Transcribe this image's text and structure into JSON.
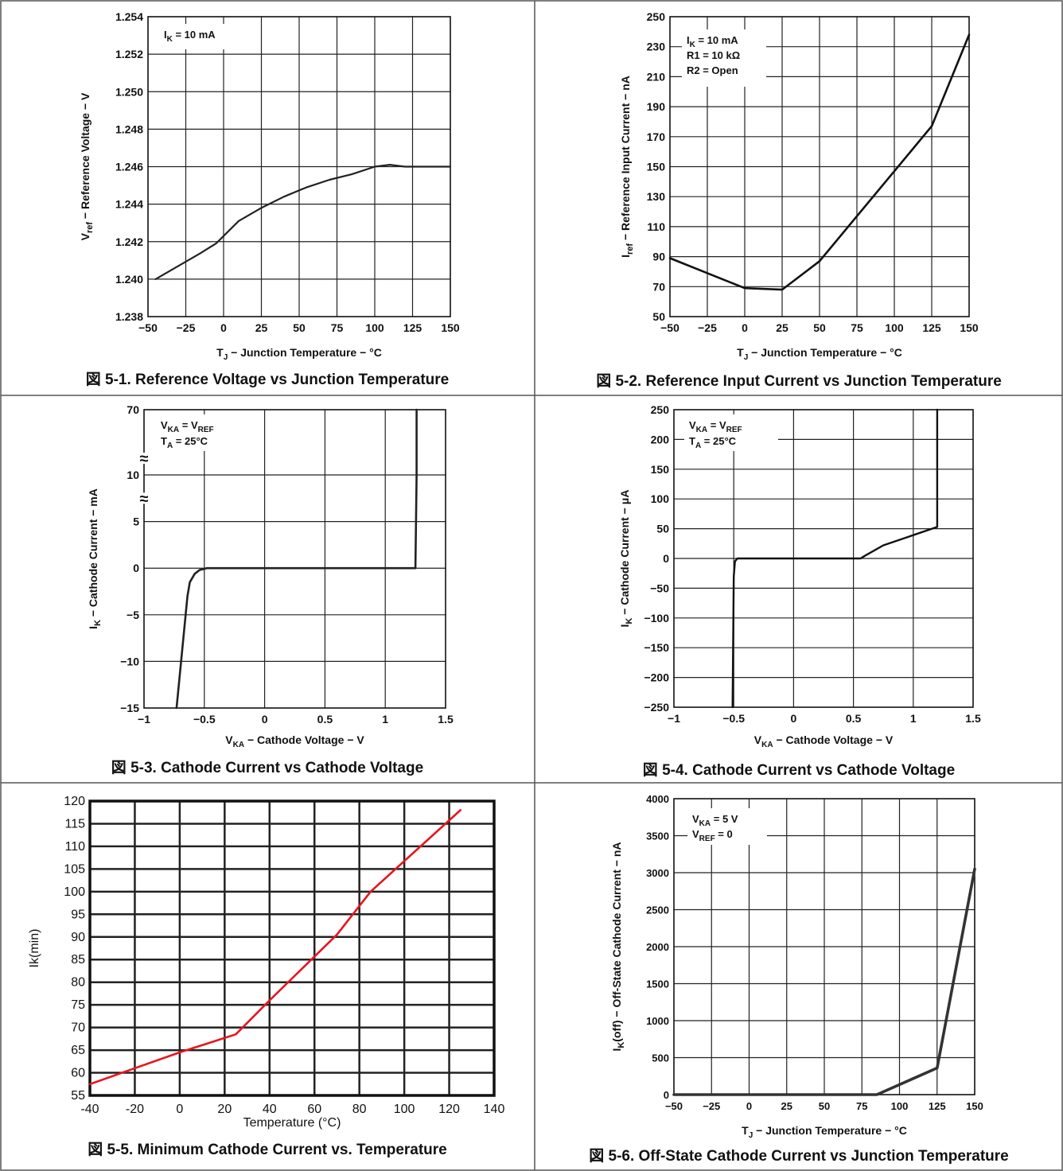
{
  "chart_data": [
    {
      "id": "fig5-1",
      "type": "line",
      "caption": "図 5-1. Reference Voltage vs Junction Temperature",
      "xlabel": "T_J − Junction Temperature − °C",
      "ylabel": "V_ref − Reference Voltage − V",
      "xlim": [
        -50,
        150
      ],
      "ylim": [
        1.238,
        1.254
      ],
      "xticks": [
        -50,
        -25,
        0,
        25,
        50,
        75,
        100,
        125,
        150
      ],
      "xtick_labels": [
        "−50",
        "−25",
        "0",
        "25",
        "50",
        "75",
        "100",
        "125",
        "150"
      ],
      "yticks": [
        1.238,
        1.24,
        1.242,
        1.244,
        1.246,
        1.248,
        1.25,
        1.252,
        1.254
      ],
      "ytick_labels": [
        "1.238",
        "1.240",
        "1.242",
        "1.244",
        "1.246",
        "1.248",
        "1.250",
        "1.252",
        "1.254"
      ],
      "grid": true,
      "annotation": "I_K = 10 mA",
      "series": [
        {
          "color": "#222222",
          "x": [
            -45,
            -30,
            -15,
            -5,
            0,
            10,
            25,
            40,
            55,
            70,
            85,
            100,
            110,
            120,
            125,
            130,
            150
          ],
          "y": [
            1.24,
            1.2407,
            1.2414,
            1.2419,
            1.2423,
            1.2431,
            1.2438,
            1.2444,
            1.2449,
            1.2453,
            1.2456,
            1.246,
            1.2461,
            1.246,
            1.246,
            1.246,
            1.246
          ]
        }
      ]
    },
    {
      "id": "fig5-2",
      "type": "line",
      "caption": "図 5-2. Reference Input Current vs Junction Temperature",
      "xlabel": "T_J − Junction Temperature − °C",
      "ylabel": "I_ref − Reference Input Current − nA",
      "xlim": [
        -50,
        150
      ],
      "ylim": [
        50,
        250
      ],
      "xticks": [
        -50,
        -25,
        0,
        25,
        50,
        75,
        100,
        125,
        150
      ],
      "xtick_labels": [
        "−50",
        "−25",
        "0",
        "25",
        "50",
        "75",
        "100",
        "125",
        "150"
      ],
      "yticks": [
        50,
        70,
        90,
        110,
        130,
        150,
        170,
        190,
        210,
        230,
        250
      ],
      "ytick_labels": [
        "50",
        "70",
        "90",
        "110",
        "130",
        "150",
        "170",
        "190",
        "210",
        "230",
        "250"
      ],
      "grid": true,
      "annotation": [
        "I_K = 10 mA",
        "R1 = 10 kΩ",
        "R2 = Open"
      ],
      "series": [
        {
          "color": "#111111",
          "x": [
            -50,
            0,
            25,
            50,
            75,
            100,
            125,
            150
          ],
          "y": [
            89,
            69,
            68,
            87,
            117,
            147,
            177,
            238
          ]
        }
      ]
    },
    {
      "id": "fig5-3",
      "type": "line",
      "caption": "図 5-3. Cathode Current vs Cathode Voltage",
      "xlabel": "V_KA − Cathode Voltage − V",
      "ylabel": "I_K − Cathode Current − mA",
      "xlim": [
        -1,
        1.5
      ],
      "ylim": [
        -15,
        70
      ],
      "xticks": [
        -1,
        -0.5,
        0,
        0.5,
        1,
        1.5
      ],
      "xtick_labels": [
        "−1",
        "−0.5",
        "0",
        "0.5",
        "1",
        "1.5"
      ],
      "yticks": [
        -15,
        -10,
        -5,
        0,
        5,
        10,
        70
      ],
      "ytick_labels": [
        "−15",
        "−10",
        "−5",
        "0",
        "5",
        "10",
        "70"
      ],
      "axis_breaks": "≈",
      "grid": true,
      "annotation": [
        "V_KA = V_REF",
        "T_A = 25°C"
      ],
      "series": [
        {
          "color": "#222222",
          "x": [
            -0.73,
            -0.64,
            -0.62,
            -0.58,
            -0.54,
            -0.48,
            -0.45,
            1.25,
            1.26,
            1.26
          ],
          "y": [
            -15,
            -3,
            -1.5,
            -0.6,
            -0.2,
            0,
            0,
            0,
            10,
            70
          ]
        }
      ]
    },
    {
      "id": "fig5-4",
      "type": "line",
      "caption": "図 5-4. Cathode Current vs Cathode Voltage",
      "xlabel": "V_KA − Cathode Voltage − V",
      "ylabel": "I_K − Cathode Current − μA",
      "xlim": [
        -1,
        1.5
      ],
      "ylim": [
        -250,
        250
      ],
      "xticks": [
        -1,
        -0.5,
        0,
        0.5,
        1,
        1.5
      ],
      "xtick_labels": [
        "−1",
        "−0.5",
        "0",
        "0.5",
        "1",
        "1.5"
      ],
      "yticks": [
        -250,
        -200,
        -150,
        -100,
        -50,
        0,
        50,
        100,
        150,
        200,
        250
      ],
      "ytick_labels": [
        "−250",
        "−200",
        "−150",
        "−100",
        "−50",
        "0",
        "50",
        "100",
        "150",
        "200",
        "250"
      ],
      "grid": true,
      "annotation": [
        "V_KA = V_REF",
        "T_A = 25°C"
      ],
      "series": [
        {
          "color": "#111111",
          "x": [
            -0.51,
            -0.5,
            -0.49,
            -0.47,
            -0.45,
            0.56,
            0.6,
            0.75,
            1.2,
            1.2
          ],
          "y": [
            -250,
            -30,
            -5,
            0,
            0,
            0,
            5,
            22,
            53,
            250
          ]
        }
      ]
    },
    {
      "id": "fig5-5",
      "type": "line",
      "caption": "図 5-5. Minimum Cathode Current vs. Temperature",
      "xlabel": "Temperature (°C)",
      "ylabel": "Ik(min)",
      "xlim": [
        -40,
        140
      ],
      "ylim": [
        55,
        120
      ],
      "xticks": [
        -40,
        -20,
        0,
        20,
        40,
        60,
        80,
        100,
        120,
        140
      ],
      "xtick_labels": [
        "-40",
        "-20",
        "0",
        "20",
        "40",
        "60",
        "80",
        "100",
        "120",
        "140"
      ],
      "yticks": [
        55,
        60,
        65,
        70,
        75,
        80,
        85,
        90,
        95,
        100,
        105,
        110,
        115,
        120
      ],
      "ytick_labels": [
        "55",
        "60",
        "65",
        "70",
        "75",
        "80",
        "85",
        "90",
        "95",
        "100",
        "105",
        "110",
        "115",
        "120"
      ],
      "grid": true,
      "series": [
        {
          "color": "#e8141c",
          "x": [
            -40,
            -20,
            0,
            25,
            40,
            70,
            85,
            125
          ],
          "y": [
            57.5,
            61,
            64.5,
            68.5,
            76,
            90.5,
            100,
            118
          ]
        }
      ]
    },
    {
      "id": "fig5-6",
      "type": "line",
      "caption": "図 5-6. Off-State Cathode Current vs Junction Temperature",
      "xlabel": "T_J − Junction Temperature − °C",
      "ylabel": "I_K(off) − Off-State Cathode Current − nA",
      "xlim": [
        -50,
        150
      ],
      "ylim": [
        0,
        4000
      ],
      "xticks": [
        -50,
        -25,
        0,
        25,
        50,
        75,
        100,
        125,
        150
      ],
      "xtick_labels": [
        "−50",
        "−25",
        "0",
        "25",
        "50",
        "75",
        "100",
        "125",
        "150"
      ],
      "yticks": [
        0,
        500,
        1000,
        1500,
        2000,
        2500,
        3000,
        3500,
        4000
      ],
      "ytick_labels": [
        "0",
        "500",
        "1000",
        "1500",
        "2000",
        "2500",
        "3000",
        "3500",
        "4000"
      ],
      "grid": true,
      "annotation": [
        "V_KA = 5 V",
        "V_REF = 0"
      ],
      "series": [
        {
          "color": "#333333",
          "x": [
            -50,
            85,
            125,
            150
          ],
          "y": [
            0,
            0,
            360,
            3050
          ]
        }
      ]
    }
  ]
}
